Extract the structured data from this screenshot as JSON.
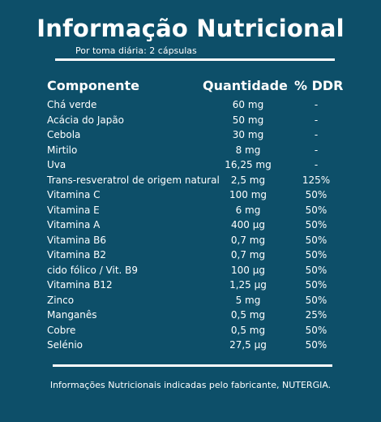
{
  "title": "Informação Nutricional",
  "subtitle": "Por toma diária: 2 cápsulas",
  "table": {
    "headers": {
      "component": "Componente",
      "quantity": "Quantidade",
      "ddr": "% DDR"
    },
    "rows": [
      {
        "name": "Chá verde",
        "qty": "60 mg",
        "ddr": "-"
      },
      {
        "name": "Acácia do Japão",
        "qty": "50 mg",
        "ddr": "-"
      },
      {
        "name": "Cebola",
        "qty": "30 mg",
        "ddr": "-"
      },
      {
        "name": "Mirtilo",
        "qty": "8 mg",
        "ddr": "-"
      },
      {
        "name": "Uva",
        "qty": "16,25 mg",
        "ddr": "-"
      },
      {
        "name": "Trans-resveratrol de origem natural",
        "qty": "2,5 mg",
        "ddr": "125%"
      },
      {
        "name": "Vitamina C",
        "qty": "100 mg",
        "ddr": "50%"
      },
      {
        "name": "Vitamina E",
        "qty": "6 mg",
        "ddr": "50%"
      },
      {
        "name": "Vitamina A",
        "qty": "400 µg",
        "ddr": "50%"
      },
      {
        "name": "Vitamina B6",
        "qty": "0,7 mg",
        "ddr": "50%"
      },
      {
        "name": "Vitamina B2",
        "qty": "0,7 mg",
        "ddr": "50%"
      },
      {
        "name": "cido fólico / Vit. B9",
        "qty": "100 µg",
        "ddr": "50%"
      },
      {
        "name": "Vitamina B12",
        "qty": "1,25 µg",
        "ddr": "50%"
      },
      {
        "name": "Zinco",
        "qty": "5 mg",
        "ddr": "50%"
      },
      {
        "name": "Manganês",
        "qty": "0,5 mg",
        "ddr": "25%"
      },
      {
        "name": "Cobre",
        "qty": "0,5 mg",
        "ddr": "50%"
      },
      {
        "name": "Selénio",
        "qty": "27,5 µg",
        "ddr": "50%"
      }
    ]
  },
  "footnote": "Informações Nutricionais indicadas pelo fabricante, NUTERGIA.",
  "colors": {
    "background": "#0d4f69",
    "text": "#ffffff"
  }
}
